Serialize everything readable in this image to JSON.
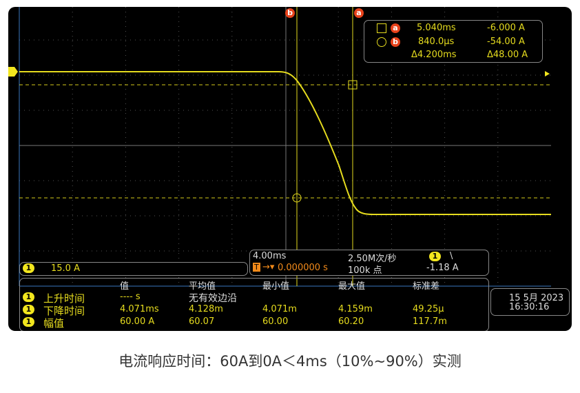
{
  "cursor_readout": {
    "a": {
      "label": "a",
      "time": "5.040ms",
      "value": "-6.000 A"
    },
    "b": {
      "label": "b",
      "time": "840.0µs",
      "value": "-54.00 A"
    },
    "delta": {
      "time": "Δ4.200ms",
      "value": "Δ48.00 A"
    }
  },
  "cursor_labels": {
    "a": "a",
    "b": "b"
  },
  "channel": {
    "number": "1",
    "scale": "15.0 A",
    "color": "#e6dc1e"
  },
  "timebase": {
    "scale": "4.00ms",
    "sample_rate": "2.50M次/秒",
    "trigger_label": "T",
    "trigger_offset": "0.000000 s",
    "points": "100k 点",
    "trigger_channel": "1",
    "trigger_slope": "\\",
    "trigger_level": "-1.18 A"
  },
  "measurements": {
    "headers": [
      "值",
      "平均值",
      "最小值",
      "最大值",
      "标准差"
    ],
    "rows": [
      {
        "ch": "1",
        "name": "上升时间",
        "value": "---- s",
        "note": "无有效边沿"
      },
      {
        "ch": "1",
        "name": "下降时间",
        "value": "4.071ms",
        "mean": "4.128m",
        "min": "4.071m",
        "max": "4.159m",
        "std": "49.25µ"
      },
      {
        "ch": "1",
        "name": "幅值",
        "value": "60.00 A",
        "mean": "60.07",
        "min": "60.00",
        "max": "60.20",
        "std": "117.7m"
      }
    ]
  },
  "datetime": {
    "date": "15 5月 2023",
    "time": "16:30:16"
  },
  "caption": "电流响应时间：60A到0A＜4ms（10%~90%）实测"
}
